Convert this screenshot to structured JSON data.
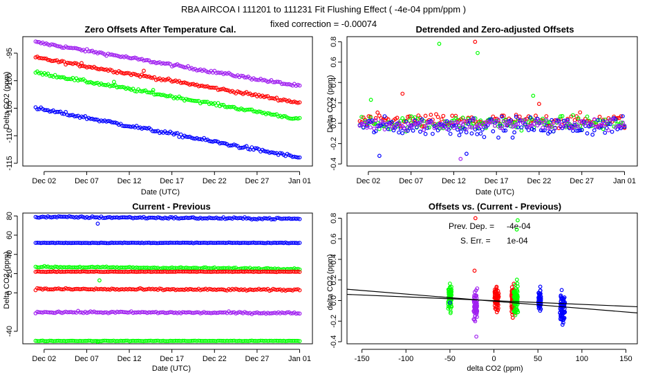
{
  "figure": {
    "title": "RBA   AIRCOA I   111201 to 111231   Fit Flushing Effect ( -4e-04 ppm/ppm )",
    "subtitle": "fixed correction = -0.00074"
  },
  "colors": {
    "purple": "#a020f0",
    "red": "#ff0000",
    "green": "#00ff00",
    "blue": "#0000ff",
    "black": "#000000"
  },
  "chart_data": [
    {
      "type": "scatter",
      "title": "Zero Offsets After Temperature Cal.",
      "xlabel": "Date (UTC)",
      "ylabel": "Delta CO2 (ppm)",
      "xlim": [
        -1.5,
        32.5
      ],
      "ylim": [
        -115.5,
        -92
      ],
      "x_ticks": [
        {
          "v": 1,
          "label": "Dec 02"
        },
        {
          "v": 6,
          "label": "Dec 07"
        },
        {
          "v": 11,
          "label": "Dec 12"
        },
        {
          "v": 16,
          "label": "Dec 17"
        },
        {
          "v": 21,
          "label": "Dec 22"
        },
        {
          "v": 26,
          "label": "Dec 27"
        },
        {
          "v": 31,
          "label": "Jan 01"
        }
      ],
      "y_ticks": [
        {
          "v": -95,
          "label": "-95"
        },
        {
          "v": -100,
          "label": "-100"
        },
        {
          "v": -105,
          "label": "-105"
        },
        {
          "v": -110,
          "label": "-110"
        },
        {
          "v": -115,
          "label": "-115"
        }
      ],
      "series": [
        {
          "color": "purple",
          "x_start": 0,
          "x_end": 31,
          "y_start": -93.0,
          "y_end": -101.0,
          "noise": 0.25,
          "outliers": []
        },
        {
          "color": "red",
          "x_start": 0,
          "x_end": 31,
          "y_start": -95.8,
          "y_end": -104.0,
          "noise": 0.25,
          "outliers": [
            [
              5.4,
              -96.8
            ],
            [
              12.7,
              -98.2
            ]
          ]
        },
        {
          "color": "green",
          "x_start": 0,
          "x_end": 31,
          "y_start": -98.5,
          "y_end": -107.0,
          "noise": 0.25,
          "outliers": [
            [
              9.2,
              -100.2
            ],
            [
              13.8,
              -101.7
            ]
          ]
        },
        {
          "color": "blue",
          "x_start": 0,
          "x_end": 31,
          "y_start": -105.0,
          "y_end": -114.0,
          "noise": 0.3,
          "outliers": []
        }
      ]
    },
    {
      "type": "scatter",
      "title": "Detrended and Zero-adjusted Offsets",
      "xlabel": "Date (UTC)",
      "ylabel": "Delta CO2 (ppm)",
      "xlim": [
        -1.5,
        32.5
      ],
      "ylim": [
        -0.42,
        0.85
      ],
      "x_ticks": [
        {
          "v": 1,
          "label": "Dec 02"
        },
        {
          "v": 6,
          "label": "Dec 07"
        },
        {
          "v": 11,
          "label": "Dec 12"
        },
        {
          "v": 16,
          "label": "Dec 17"
        },
        {
          "v": 21,
          "label": "Dec 22"
        },
        {
          "v": 26,
          "label": "Dec 27"
        },
        {
          "v": 31,
          "label": "Jan 01"
        }
      ],
      "y_ticks": [
        {
          "v": 0.8,
          "label": "0.8"
        },
        {
          "v": 0.6,
          "label": "0.6"
        },
        {
          "v": 0.4,
          "label": "0.4"
        },
        {
          "v": 0.2,
          "label": "0.2"
        },
        {
          "v": 0.0,
          "label": "0.0"
        },
        {
          "v": -0.2,
          "label": "-0.2"
        },
        {
          "v": -0.4,
          "label": "-0.4"
        }
      ],
      "series": [
        {
          "color": "red",
          "x_start": 0,
          "x_end": 31,
          "center": 0.02,
          "noise": 0.07,
          "outliers": [
            [
              13.5,
              0.8
            ],
            [
              5.0,
              0.29
            ],
            [
              21.0,
              0.19
            ]
          ]
        },
        {
          "color": "green",
          "x_start": 0,
          "x_end": 31,
          "center": 0.0,
          "noise": 0.07,
          "outliers": [
            [
              9.3,
              0.78
            ],
            [
              13.8,
              0.69
            ],
            [
              20.3,
              0.27
            ],
            [
              1.3,
              0.23
            ]
          ]
        },
        {
          "color": "blue",
          "x_start": 0,
          "x_end": 31,
          "center": -0.03,
          "noise": 0.09,
          "outliers": [
            [
              2.3,
              -0.32
            ],
            [
              12.5,
              -0.3
            ]
          ]
        },
        {
          "color": "purple",
          "x_start": 0,
          "x_end": 31,
          "center": -0.01,
          "noise": 0.06,
          "outliers": [
            [
              11.8,
              -0.35
            ]
          ]
        }
      ]
    },
    {
      "type": "scatter",
      "title": "Current - Previous",
      "xlabel": "Date (UTC)",
      "ylabel": "Delta CO2 (ppm)",
      "xlim": [
        -1.5,
        32.5
      ],
      "ylim": [
        -53,
        83
      ],
      "x_ticks": [
        {
          "v": 1,
          "label": "Dec 02"
        },
        {
          "v": 6,
          "label": "Dec 07"
        },
        {
          "v": 11,
          "label": "Dec 12"
        },
        {
          "v": 16,
          "label": "Dec 17"
        },
        {
          "v": 21,
          "label": "Dec 22"
        },
        {
          "v": 26,
          "label": "Dec 27"
        },
        {
          "v": 31,
          "label": "Jan 01"
        }
      ],
      "y_ticks": [
        {
          "v": 80,
          "label": "80"
        },
        {
          "v": 60,
          "label": "60"
        },
        {
          "v": 40,
          "label": "40"
        },
        {
          "v": 20,
          "label": "20"
        },
        {
          "v": 0,
          "label": "0"
        },
        {
          "v": -40,
          "label": "-40"
        }
      ],
      "series": [
        {
          "color": "blue",
          "x_start": 0,
          "x_end": 31,
          "y_start": 79,
          "y_end": 77,
          "noise": 1.0,
          "outliers": [
            [
              7.3,
              72
            ]
          ]
        },
        {
          "color": "blue",
          "x_start": 0,
          "x_end": 31,
          "y_start": 52,
          "y_end": 52,
          "noise": 0.3,
          "outliers": []
        },
        {
          "color": "green",
          "x_start": 0,
          "x_end": 31,
          "y_start": 27,
          "y_end": 25,
          "noise": 0.8,
          "outliers": [
            [
              7.5,
              13
            ]
          ]
        },
        {
          "color": "red",
          "x_start": 0,
          "x_end": 31,
          "y_start": 22,
          "y_end": 22,
          "noise": 0.3,
          "outliers": []
        },
        {
          "color": "red",
          "x_start": 0,
          "x_end": 31,
          "y_start": 4,
          "y_end": 3,
          "noise": 1.0,
          "outliers": []
        },
        {
          "color": "purple",
          "x_start": 0,
          "x_end": 31,
          "y_start": -20,
          "y_end": -21,
          "noise": 1.0,
          "outliers": []
        },
        {
          "color": "green",
          "x_start": 0,
          "x_end": 31,
          "y_start": -50,
          "y_end": -50,
          "noise": 0.3,
          "outliers": [
            [
              7.3,
              -51
            ]
          ]
        }
      ]
    },
    {
      "type": "scatter",
      "title": "Offsets vs. (Current - Previous)",
      "xlabel": "delta CO2 (ppm)",
      "ylabel": "delta CO2 (ppm)",
      "xlim": [
        -167,
        163
      ],
      "ylim": [
        -0.42,
        0.85
      ],
      "x_ticks": [
        {
          "v": -150,
          "label": "-150"
        },
        {
          "v": -100,
          "label": "-100"
        },
        {
          "v": -50,
          "label": "-50"
        },
        {
          "v": 0,
          "label": "0"
        },
        {
          "v": 50,
          "label": "50"
        },
        {
          "v": 100,
          "label": "100"
        },
        {
          "v": 150,
          "label": "150"
        }
      ],
      "y_ticks": [
        {
          "v": 0.8,
          "label": "0.8"
        },
        {
          "v": 0.6,
          "label": "0.6"
        },
        {
          "v": 0.4,
          "label": "0.4"
        },
        {
          "v": 0.2,
          "label": "0.2"
        },
        {
          "v": 0.0,
          "label": "0.0"
        },
        {
          "v": -0.2,
          "label": "-0.2"
        },
        {
          "v": -0.4,
          "label": "-0.4"
        }
      ],
      "annotations": [
        {
          "label": "Prev. Dep. =",
          "value": "-4e-04"
        },
        {
          "label": "S. Err. =",
          "value": "1e-04"
        }
      ],
      "clusters": [
        {
          "color": "green",
          "x": -50,
          "spread": 2.0,
          "ymin": -0.16,
          "ymax": 0.22
        },
        {
          "color": "purple",
          "x": -21,
          "spread": 2.0,
          "ymin": -0.27,
          "ymax": 0.18
        },
        {
          "color": "red",
          "x": 3,
          "spread": 2.5,
          "ymin": -0.17,
          "ymax": 0.22
        },
        {
          "color": "red",
          "x": 22,
          "spread": 2.0,
          "ymin": -0.2,
          "ymax": 0.19
        },
        {
          "color": "green",
          "x": 25,
          "spread": 2.5,
          "ymin": -0.22,
          "ymax": 0.25
        },
        {
          "color": "blue",
          "x": 52,
          "spread": 1.5,
          "ymin": -0.15,
          "ymax": 0.15
        },
        {
          "color": "blue",
          "x": 78,
          "spread": 3.0,
          "ymin": -0.31,
          "ymax": 0.18
        }
      ],
      "outliers": [
        {
          "color": "red",
          "x": -22,
          "y": 0.29
        },
        {
          "color": "red",
          "x": -21,
          "y": 0.8
        },
        {
          "color": "green",
          "x": 27,
          "y": 0.78
        },
        {
          "color": "green",
          "x": 26,
          "y": 0.69
        },
        {
          "color": "purple",
          "x": -20,
          "y": -0.35
        },
        {
          "color": "blue",
          "x": -50,
          "y": -0.02
        }
      ],
      "fit_lines": [
        {
          "x1": -167,
          "y1": 0.11,
          "x2": 163,
          "y2": -0.12
        },
        {
          "x1": -167,
          "y1": 0.06,
          "x2": 163,
          "y2": -0.06
        }
      ]
    }
  ]
}
